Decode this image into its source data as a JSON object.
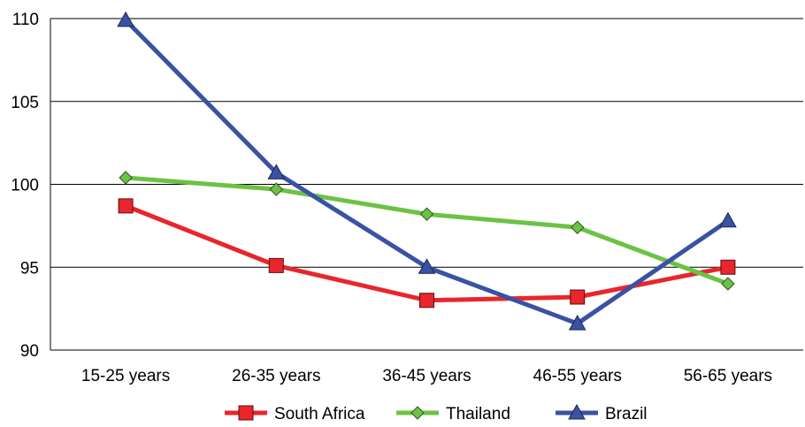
{
  "chart_data": {
    "type": "line",
    "title": "",
    "xlabel": "",
    "ylabel": "",
    "categories": [
      "15-25 years",
      "26-35 years",
      "36-45 years",
      "46-55 years",
      "56-65 years"
    ],
    "ylim": [
      90,
      110
    ],
    "yticks": [
      90,
      95,
      100,
      105,
      110
    ],
    "grid": true,
    "legend_position": "bottom",
    "series": [
      {
        "name": "South Africa",
        "color": "#e8262b",
        "marker": "square",
        "values": [
          98.7,
          95.1,
          93.0,
          93.2,
          95.0
        ]
      },
      {
        "name": "Thailand",
        "color": "#6cc244",
        "marker": "diamond",
        "values": [
          100.4,
          99.7,
          98.2,
          97.4,
          94.0
        ]
      },
      {
        "name": "Brazil",
        "color": "#3a52a4",
        "marker": "triangle",
        "values": [
          109.9,
          100.7,
          95.0,
          91.6,
          97.8
        ]
      }
    ]
  }
}
